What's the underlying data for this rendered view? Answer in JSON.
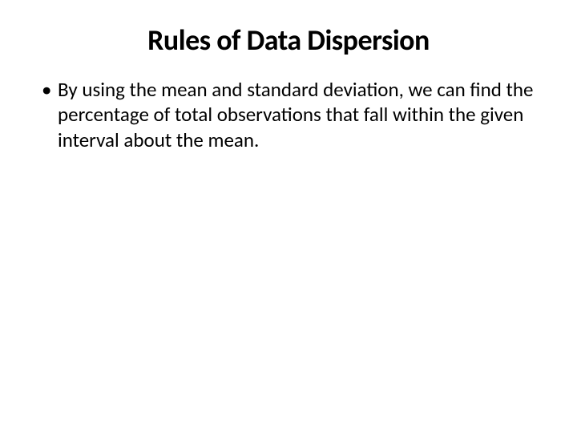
{
  "slide": {
    "title": "Rules of Data Dispersion",
    "bullets": [
      "By using the mean and standard deviation, we can find the percentage of total observations that fall within the given interval about the mean."
    ],
    "background_color": "#ffffff",
    "text_color": "#000000",
    "title_fontsize": 36,
    "body_fontsize": 25
  }
}
